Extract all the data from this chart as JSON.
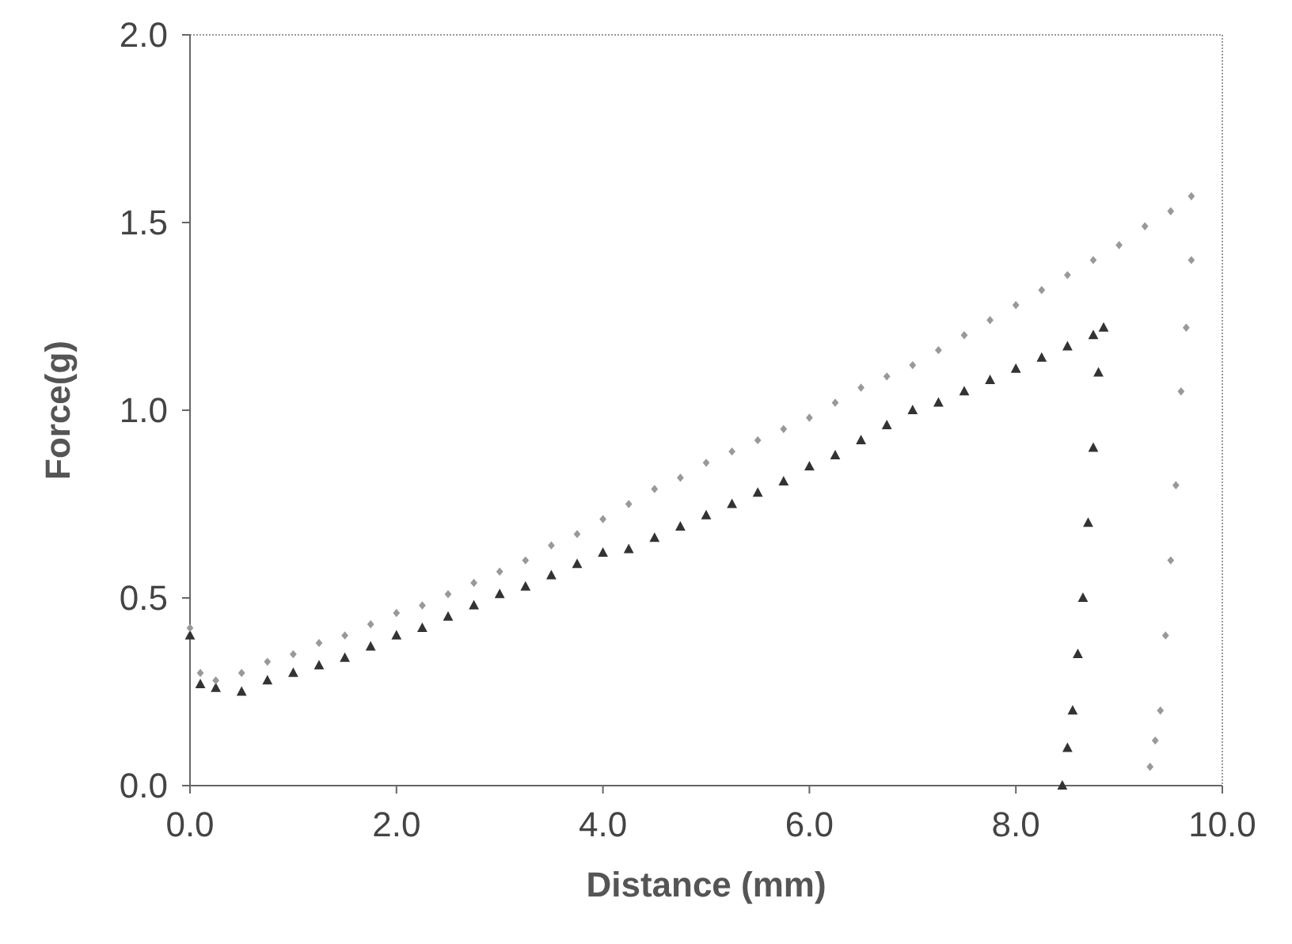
{
  "chart_data": {
    "type": "scatter",
    "xlabel": "Distance (mm)",
    "ylabel": "Force(g)",
    "xlim": [
      0,
      10
    ],
    "ylim": [
      0,
      2
    ],
    "xticks": [
      {
        "value": 0,
        "label": "0.0"
      },
      {
        "value": 2,
        "label": "2.0"
      },
      {
        "value": 4,
        "label": "4.0"
      },
      {
        "value": 6,
        "label": "6.0"
      },
      {
        "value": 8,
        "label": "8.0"
      },
      {
        "value": 10,
        "label": "10.0"
      }
    ],
    "yticks": [
      {
        "value": 0,
        "label": "0.0"
      },
      {
        "value": 0.5,
        "label": "0.5"
      },
      {
        "value": 1,
        "label": "1.0"
      },
      {
        "value": 1.5,
        "label": "1.5"
      },
      {
        "value": 2,
        "label": "2.0"
      }
    ],
    "grid": false,
    "series": [
      {
        "color": "#333333",
        "marker": "triangle",
        "x": [
          0,
          0.1,
          0.25,
          0.5,
          0.75,
          1,
          1.25,
          1.5,
          1.75,
          2,
          2.25,
          2.5,
          2.75,
          3,
          3.25,
          3.5,
          3.75,
          4,
          4.25,
          4.5,
          4.75,
          5,
          5.25,
          5.5,
          5.75,
          6,
          6.25,
          6.5,
          6.75,
          7,
          7.25,
          7.5,
          7.75,
          8,
          8.25,
          8.5,
          8.75,
          8.85,
          8.8,
          8.75,
          8.7,
          8.65,
          8.6,
          8.55,
          8.5,
          8.45
        ],
        "values": [
          0.4,
          0.27,
          0.26,
          0.25,
          0.28,
          0.3,
          0.32,
          0.34,
          0.37,
          0.4,
          0.42,
          0.45,
          0.48,
          0.51,
          0.53,
          0.56,
          0.59,
          0.62,
          0.63,
          0.66,
          0.69,
          0.72,
          0.75,
          0.78,
          0.81,
          0.85,
          0.88,
          0.92,
          0.96,
          1,
          1.02,
          1.05,
          1.08,
          1.11,
          1.14,
          1.17,
          1.2,
          1.22,
          1.1,
          0.9,
          0.7,
          0.5,
          0.35,
          0.2,
          0.1,
          0
        ]
      },
      {
        "color": "#999999",
        "marker": "diamond",
        "x": [
          0,
          0.1,
          0.25,
          0.5,
          0.75,
          1,
          1.25,
          1.5,
          1.75,
          2,
          2.25,
          2.5,
          2.75,
          3,
          3.25,
          3.5,
          3.75,
          4,
          4.25,
          4.5,
          4.75,
          5,
          5.25,
          5.5,
          5.75,
          6,
          6.25,
          6.5,
          6.75,
          7,
          7.25,
          7.5,
          7.75,
          8,
          8.25,
          8.5,
          8.75,
          9,
          9.25,
          9.5,
          9.7,
          9.7,
          9.65,
          9.6,
          9.55,
          9.5,
          9.45,
          9.4,
          9.35,
          9.3
        ],
        "values": [
          0.42,
          0.3,
          0.28,
          0.3,
          0.33,
          0.35,
          0.38,
          0.4,
          0.43,
          0.46,
          0.48,
          0.51,
          0.54,
          0.57,
          0.6,
          0.64,
          0.67,
          0.71,
          0.75,
          0.79,
          0.82,
          0.86,
          0.89,
          0.92,
          0.95,
          0.98,
          1.02,
          1.06,
          1.09,
          1.12,
          1.16,
          1.2,
          1.24,
          1.28,
          1.32,
          1.36,
          1.4,
          1.44,
          1.49,
          1.53,
          1.57,
          1.4,
          1.22,
          1.05,
          0.8,
          0.6,
          0.4,
          0.2,
          0.12,
          0.05
        ]
      }
    ]
  }
}
